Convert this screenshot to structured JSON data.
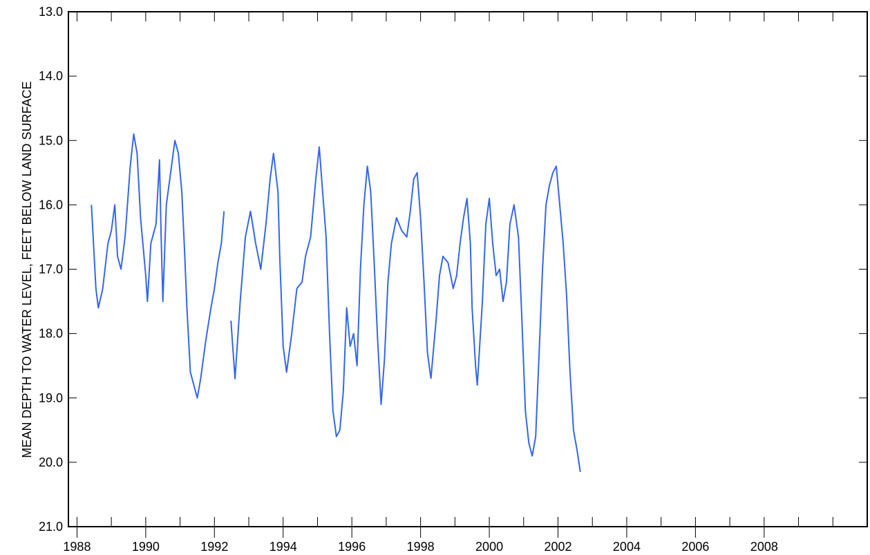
{
  "chart_data": {
    "type": "line",
    "title": "",
    "xlabel": "",
    "ylabel": "MEAN DEPTH TO WATER LEVEL, FEET BELOW LAND SURFACE",
    "x_tick_labels": [
      "1988",
      "1990",
      "1992",
      "1994",
      "1996",
      "1998",
      "2000",
      "2002",
      "2004",
      "2006",
      "2008"
    ],
    "x_tick_values": [
      1988,
      1990,
      1992,
      1994,
      1996,
      1998,
      2000,
      2002,
      2004,
      2006,
      2008
    ],
    "y_tick_labels": [
      "13.0",
      "14.0",
      "15.0",
      "16.0",
      "17.0",
      "18.0",
      "19.0",
      "20.0",
      "21.0"
    ],
    "y_tick_values": [
      13,
      14,
      15,
      16,
      17,
      18,
      19,
      20,
      21
    ],
    "xlim": [
      1987.75,
      2011.0
    ],
    "ylim": [
      21.0,
      13.0
    ],
    "y_inverted": true,
    "grid": false,
    "legend": "none",
    "series": [
      {
        "color": "#3366ee",
        "segments": [
          [
            [
              1988.42,
              16.0
            ],
            [
              1988.55,
              17.3
            ],
            [
              1988.62,
              17.6
            ],
            [
              1988.75,
              17.3
            ],
            [
              1988.9,
              16.6
            ],
            [
              1989.0,
              16.4
            ],
            [
              1989.1,
              16.0
            ],
            [
              1989.18,
              16.8
            ],
            [
              1989.28,
              17.0
            ],
            [
              1989.4,
              16.5
            ],
            [
              1989.55,
              15.4
            ],
            [
              1989.65,
              14.9
            ],
            [
              1989.75,
              15.2
            ],
            [
              1989.85,
              16.2
            ],
            [
              1989.95,
              16.8
            ],
            [
              1990.0,
              17.1
            ],
            [
              1990.05,
              17.5
            ],
            [
              1990.15,
              16.6
            ],
            [
              1990.3,
              16.3
            ],
            [
              1990.4,
              15.3
            ],
            [
              1990.45,
              16.5
            ],
            [
              1990.5,
              17.5
            ],
            [
              1990.6,
              16.0
            ],
            [
              1990.7,
              15.6
            ],
            [
              1990.85,
              15.0
            ],
            [
              1990.95,
              15.2
            ],
            [
              1991.05,
              15.8
            ],
            [
              1991.12,
              16.6
            ],
            [
              1991.2,
              17.6
            ],
            [
              1991.3,
              18.6
            ],
            [
              1991.4,
              18.8
            ],
            [
              1991.5,
              19.0
            ],
            [
              1991.6,
              18.7
            ],
            [
              1991.75,
              18.1
            ],
            [
              1991.9,
              17.6
            ],
            [
              1992.0,
              17.3
            ],
            [
              1992.1,
              16.9
            ],
            [
              1992.2,
              16.6
            ],
            [
              1992.28,
              16.1
            ]
          ],
          [
            [
              1992.48,
              17.8
            ],
            [
              1992.6,
              18.7
            ],
            [
              1992.75,
              17.5
            ],
            [
              1992.9,
              16.5
            ],
            [
              1993.05,
              16.1
            ],
            [
              1993.2,
              16.6
            ],
            [
              1993.35,
              17.0
            ],
            [
              1993.5,
              16.3
            ],
            [
              1993.62,
              15.6
            ],
            [
              1993.72,
              15.2
            ],
            [
              1993.85,
              15.8
            ],
            [
              1993.9,
              16.8
            ],
            [
              1994.0,
              18.2
            ],
            [
              1994.1,
              18.6
            ],
            [
              1994.25,
              18.0
            ],
            [
              1994.4,
              17.3
            ],
            [
              1994.55,
              17.2
            ],
            [
              1994.65,
              16.8
            ],
            [
              1994.8,
              16.5
            ],
            [
              1994.95,
              15.6
            ],
            [
              1995.05,
              15.1
            ],
            [
              1995.15,
              15.8
            ],
            [
              1995.25,
              16.5
            ],
            [
              1995.35,
              18.0
            ],
            [
              1995.45,
              19.2
            ],
            [
              1995.55,
              19.6
            ],
            [
              1995.65,
              19.5
            ],
            [
              1995.75,
              18.9
            ],
            [
              1995.85,
              17.6
            ],
            [
              1995.95,
              18.2
            ],
            [
              1996.05,
              18.0
            ],
            [
              1996.15,
              18.5
            ],
            [
              1996.25,
              17.0
            ],
            [
              1996.35,
              16.0
            ],
            [
              1996.45,
              15.4
            ],
            [
              1996.55,
              15.8
            ],
            [
              1996.65,
              16.9
            ],
            [
              1996.75,
              18.1
            ],
            [
              1996.85,
              19.1
            ],
            [
              1996.95,
              18.4
            ],
            [
              1997.05,
              17.2
            ],
            [
              1997.15,
              16.6
            ],
            [
              1997.3,
              16.2
            ],
            [
              1997.45,
              16.4
            ],
            [
              1997.6,
              16.5
            ],
            [
              1997.7,
              16.1
            ],
            [
              1997.8,
              15.6
            ],
            [
              1997.9,
              15.5
            ],
            [
              1998.0,
              16.2
            ],
            [
              1998.1,
              17.2
            ],
            [
              1998.2,
              18.3
            ],
            [
              1998.3,
              18.7
            ]
          ],
          [
            [
              1998.3,
              18.7
            ],
            [
              1998.45,
              17.8
            ],
            [
              1998.55,
              17.1
            ],
            [
              1998.65,
              16.8
            ],
            [
              1998.8,
              16.9
            ],
            [
              1998.95,
              17.3
            ],
            [
              1999.05,
              17.1
            ],
            [
              1999.15,
              16.6
            ],
            [
              1999.25,
              16.2
            ],
            [
              1999.35,
              15.9
            ],
            [
              1999.45,
              16.6
            ],
            [
              1999.5,
              17.6
            ],
            [
              1999.6,
              18.5
            ],
            [
              1999.65,
              18.8
            ],
            [
              1999.8,
              17.5
            ],
            [
              1999.9,
              16.3
            ],
            [
              2000.0,
              15.9
            ],
            [
              2000.1,
              16.6
            ],
            [
              2000.2,
              17.1
            ],
            [
              2000.3,
              17.0
            ],
            [
              2000.4,
              17.5
            ],
            [
              2000.5,
              17.2
            ],
            [
              2000.6,
              16.3
            ],
            [
              2000.72,
              16.0
            ],
            [
              2000.85,
              16.5
            ],
            [
              2000.95,
              17.8
            ],
            [
              2001.05,
              19.2
            ],
            [
              2001.15,
              19.7
            ],
            [
              2001.25,
              19.9
            ],
            [
              2001.35,
              19.6
            ],
            [
              2001.45,
              18.3
            ],
            [
              2001.55,
              17.0
            ],
            [
              2001.65,
              16.0
            ],
            [
              2001.75,
              15.7
            ],
            [
              2001.85,
              15.5
            ],
            [
              2001.95,
              15.4
            ],
            [
              2002.05,
              16.0
            ],
            [
              2002.15,
              16.6
            ],
            [
              2002.25,
              17.4
            ],
            [
              2002.35,
              18.6
            ],
            [
              2002.45,
              19.5
            ],
            [
              2002.55,
              19.8
            ],
            [
              2002.65,
              20.15
            ]
          ]
        ]
      }
    ]
  }
}
